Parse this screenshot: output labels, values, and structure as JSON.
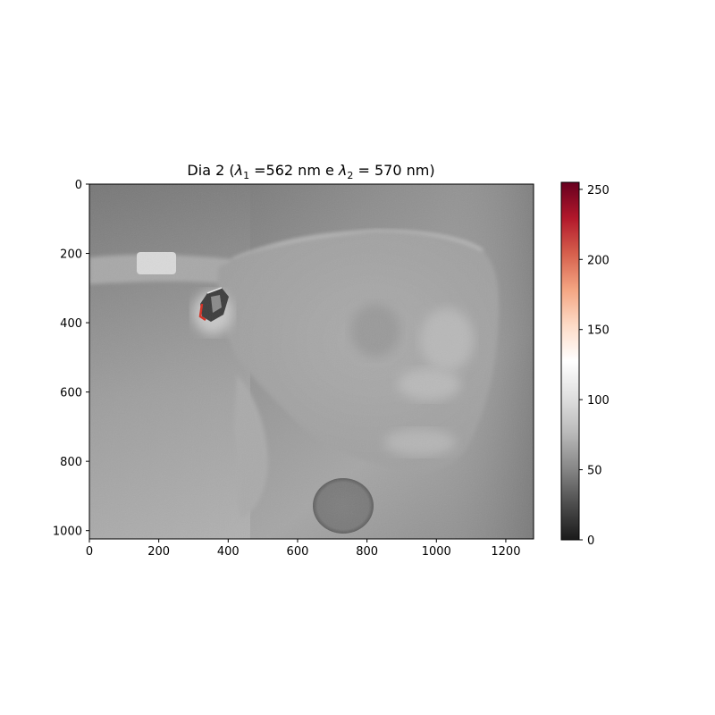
{
  "chart_data": {
    "type": "heatmap",
    "title_parts": {
      "prefix": "Dia 2 (",
      "lambda1_symbol": "λ",
      "lambda1_sub": "1",
      "lambda1_value": " =562 nm e ",
      "lambda2_symbol": "λ",
      "lambda2_sub": "2",
      "lambda2_value": " = 570 nm)"
    },
    "xlim": [
      0,
      1280
    ],
    "ylim": [
      1024,
      0
    ],
    "x_ticks": [
      0,
      200,
      400,
      600,
      800,
      1000,
      1200
    ],
    "y_ticks": [
      0,
      200,
      400,
      600,
      800,
      1000
    ],
    "colorbar": {
      "range": [
        0,
        255
      ],
      "ticks": [
        0,
        50,
        100,
        150,
        200,
        250
      ],
      "colormap": "RdGy_r",
      "stops": [
        [
          0.0,
          "#1a1a1a"
        ],
        [
          0.1,
          "#4d4d4d"
        ],
        [
          0.2,
          "#878787"
        ],
        [
          0.3,
          "#bababa"
        ],
        [
          0.4,
          "#e0e0e0"
        ],
        [
          0.5,
          "#ffffff"
        ],
        [
          0.6,
          "#fddbc7"
        ],
        [
          0.7,
          "#f4a582"
        ],
        [
          0.8,
          "#d6604d"
        ],
        [
          0.9,
          "#b2182b"
        ],
        [
          1.0,
          "#67001f"
        ]
      ]
    },
    "image_colors": {
      "background_dark": "#6e6e6e",
      "background_mid": "#9c9c9c",
      "background_light": "#b4b4b4",
      "body_tone": "#a9a9a9",
      "bright_patch": "#d8d8d8",
      "dark_disk": "#7d7d7d",
      "edge_highlight": "#c0392b"
    }
  }
}
